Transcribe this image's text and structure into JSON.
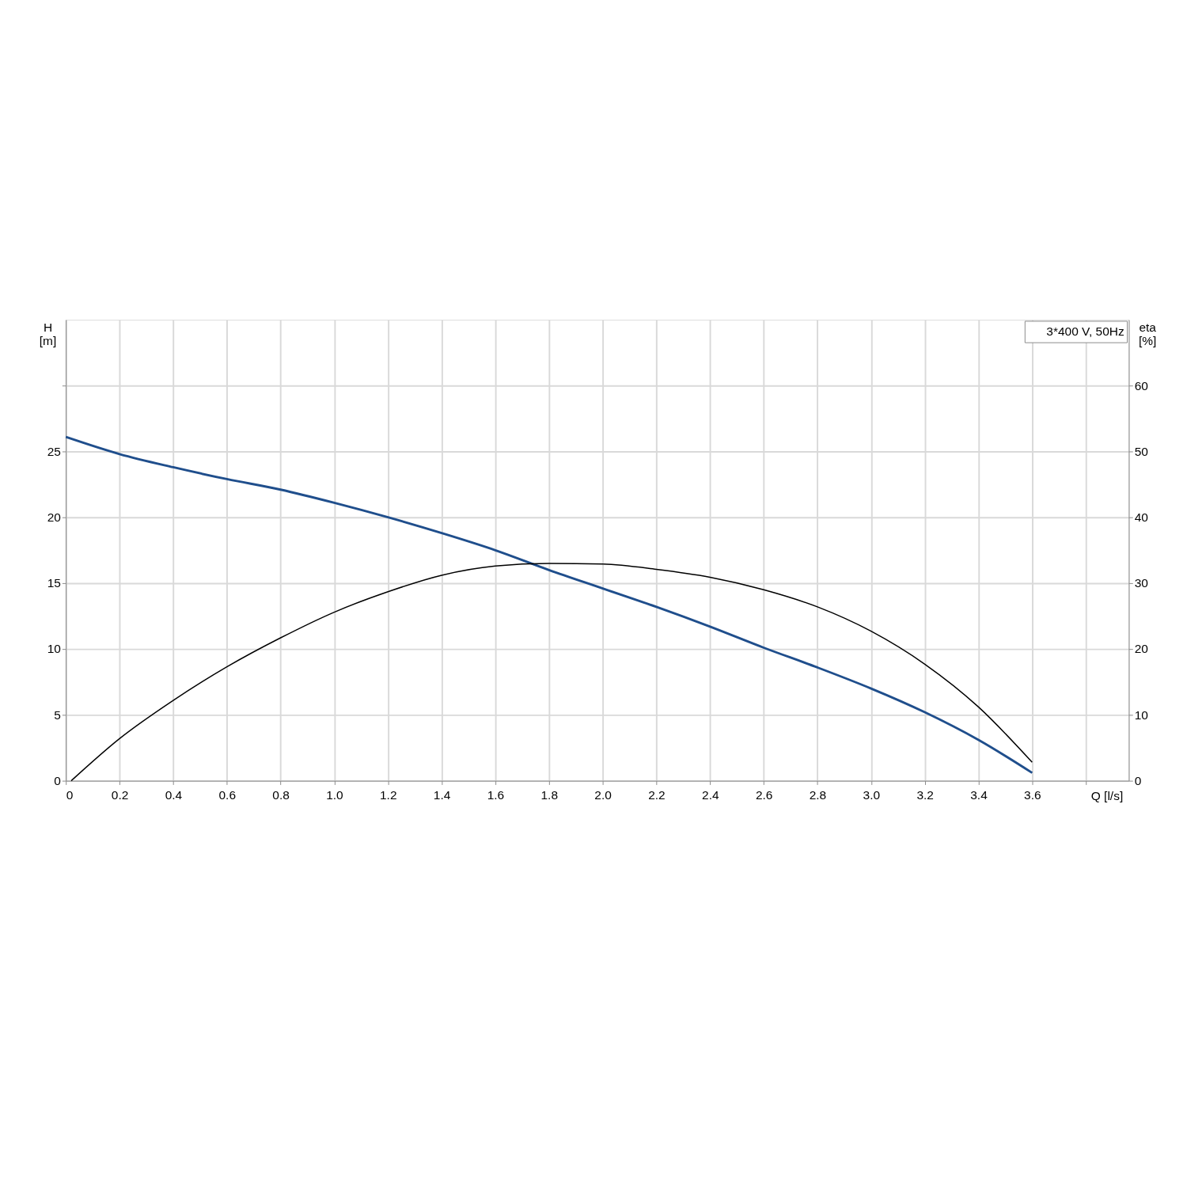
{
  "chart_data": {
    "type": "line",
    "xlabel": "Q [l/s]",
    "ylabel": "H [m]",
    "y2label": "eta [%]",
    "annotations": [
      "3*400 V, 50Hz"
    ],
    "x": [
      0,
      0.2,
      0.4,
      0.6,
      0.8,
      1.0,
      1.2,
      1.4,
      1.6,
      1.8,
      2.0,
      2.2,
      2.4,
      2.6,
      2.8,
      3.0,
      3.2,
      3.4,
      3.6
    ],
    "series": [
      {
        "color": "#1f4e8c",
        "values": [
          26.1,
          24.8,
          23.8,
          22.9,
          22.1,
          21.1,
          20.0,
          18.8,
          17.5,
          16.0,
          14.6,
          13.2,
          11.7,
          10.1,
          8.6,
          7.0,
          5.2,
          3.1,
          0.6
        ]
      },
      {
        "color": "#000000",
        "axis": "y2",
        "x": [
          0.02,
          0.2,
          0.4,
          0.6,
          0.8,
          1.0,
          1.2,
          1.4,
          1.6,
          1.8,
          2.0,
          2.2,
          2.4,
          2.6,
          2.8,
          3.0,
          3.2,
          3.4,
          3.6
        ],
        "values": [
          0,
          6.4,
          12.2,
          17.3,
          21.7,
          25.6,
          28.7,
          31.2,
          32.6,
          33.0,
          32.9,
          32.1,
          30.9,
          29.0,
          26.4,
          22.7,
          17.7,
          11.2,
          2.8
        ]
      }
    ],
    "xlim": [
      0,
      3.96
    ],
    "xticks": [
      0,
      0.2,
      0.4,
      0.6,
      0.8,
      {
        "value": 1.0,
        "label": "1.0"
      },
      1.2,
      1.4,
      1.6,
      1.8,
      {
        "value": 2.0,
        "label": "2.0"
      },
      2.2,
      2.4,
      2.6,
      2.8,
      {
        "value": 3.0,
        "label": "3.0"
      },
      3.2,
      3.4,
      3.6,
      {
        "value": 3.8,
        "label": null
      }
    ],
    "ylim": [
      0,
      35
    ],
    "yticks": [
      0,
      5,
      10,
      15,
      20,
      25,
      {
        "value": 30,
        "label": null
      }
    ],
    "y2lim": [
      0,
      70
    ],
    "y2ticks": [
      0,
      10,
      20,
      30,
      40,
      50,
      60
    ],
    "grid": true,
    "marker": "none",
    "line_style": "solid"
  }
}
